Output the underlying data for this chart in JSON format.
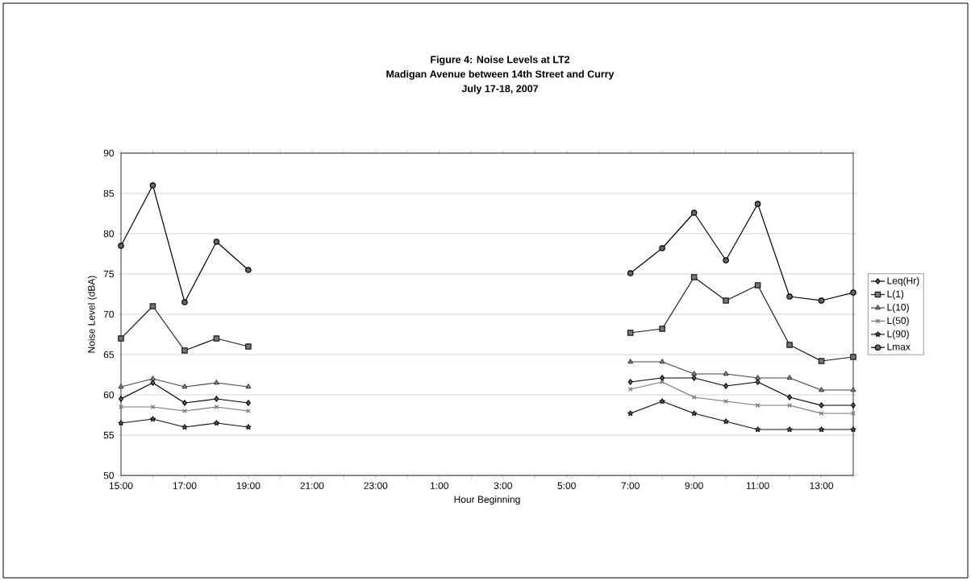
{
  "chart_data": {
    "type": "line",
    "title": "Figure 4: Noise Levels at LT2",
    "subtitle": "Madigan Avenue between 14th Street and Curry",
    "annotations": [
      "July 17-18, 2007"
    ],
    "xlabel": "Hour Beginning",
    "ylabel": "Noise Level (dBA)",
    "categories": [
      "15:00",
      null,
      "17:00",
      null,
      "19:00",
      null,
      "21:00",
      null,
      "23:00",
      null,
      "1:00",
      null,
      "3:00",
      null,
      "5:00",
      null,
      "7:00",
      null,
      "9:00",
      null,
      "11:00",
      null,
      "13:00",
      null
    ],
    "ylim": [
      50,
      90
    ],
    "yticks": [
      50,
      55,
      60,
      65,
      70,
      75,
      80,
      85,
      90
    ],
    "grid": "y",
    "legend": "right",
    "series": [
      {
        "name": "Leq(Hr)",
        "color": "#000000",
        "marker": "diamond",
        "values": [
          59.5,
          61.5,
          59,
          59.5,
          59,
          null,
          null,
          null,
          null,
          null,
          null,
          null,
          null,
          null,
          null,
          null,
          61.6,
          62.1,
          62.1,
          61.1,
          61.6,
          59.7,
          58.7,
          58.7
        ]
      },
      {
        "name": "L(1)",
        "color": "#1a1a1a",
        "marker": "square",
        "values": [
          67,
          71,
          65.5,
          67,
          66,
          null,
          null,
          null,
          null,
          null,
          null,
          null,
          null,
          null,
          null,
          null,
          67.7,
          68.2,
          74.6,
          71.7,
          73.6,
          66.2,
          64.2,
          64.7
        ]
      },
      {
        "name": "L(10)",
        "color": "#444444",
        "marker": "triangle",
        "values": [
          61,
          62,
          61,
          61.5,
          61,
          null,
          null,
          null,
          null,
          null,
          null,
          null,
          null,
          null,
          null,
          null,
          64.1,
          64.1,
          62.6,
          62.6,
          62.1,
          62.1,
          60.6,
          60.6
        ]
      },
      {
        "name": "L(50)",
        "color": "#777777",
        "marker": "cross",
        "values": [
          58.5,
          58.5,
          58,
          58.5,
          58,
          null,
          null,
          null,
          null,
          null,
          null,
          null,
          null,
          null,
          null,
          null,
          60.7,
          61.6,
          59.7,
          59.2,
          58.7,
          58.7,
          57.7,
          57.7
        ]
      },
      {
        "name": "L(90)",
        "color": "#111111",
        "marker": "star",
        "values": [
          56.5,
          57,
          56,
          56.5,
          56,
          null,
          null,
          null,
          null,
          null,
          null,
          null,
          null,
          null,
          null,
          null,
          57.7,
          59.2,
          57.7,
          56.7,
          55.7,
          55.7,
          55.7,
          55.7
        ]
      },
      {
        "name": "Lmax",
        "color": "#000000",
        "marker": "circle",
        "values": [
          78.5,
          86,
          71.5,
          79,
          75.5,
          null,
          null,
          null,
          null,
          null,
          null,
          null,
          null,
          null,
          null,
          null,
          75.1,
          78.2,
          82.6,
          76.7,
          83.7,
          72.2,
          71.7,
          72.7
        ]
      }
    ]
  }
}
